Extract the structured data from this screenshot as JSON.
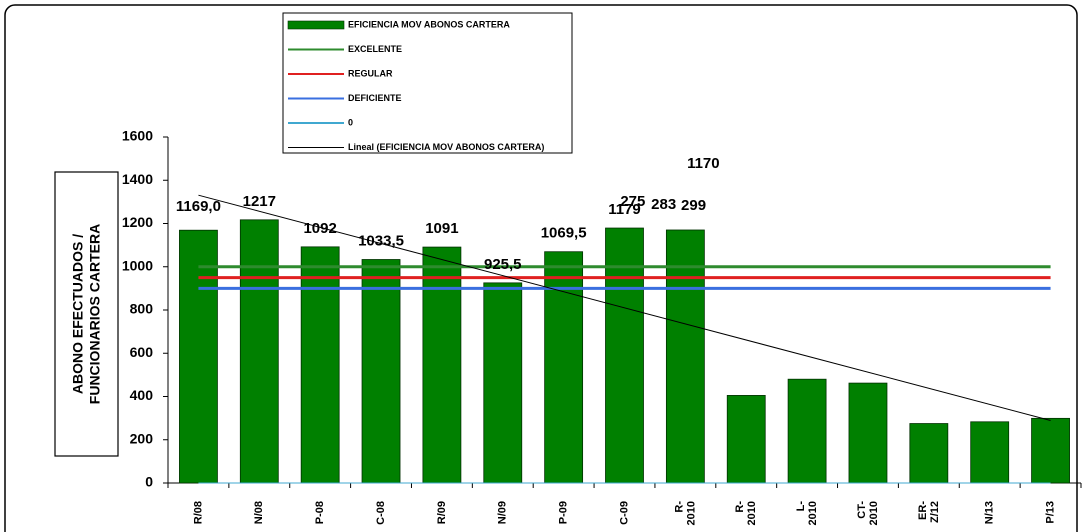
{
  "chart_data": {
    "type": "bar",
    "ylabel": [
      "ABONO EFECTUADOS /",
      "FUNCIONARIOS CARTERA"
    ],
    "categories": [
      "R/08",
      "N/08",
      "P-08",
      "C-08",
      "R/09",
      "N/09",
      "P-09",
      "C-09",
      "R- 2010",
      "R- 2010",
      "L- 2010",
      "CT- 2010",
      "ER- Z/12",
      "N/13",
      "P/13"
    ],
    "series": [
      {
        "name": "EFICIENCIA MOV ABONOS CARTERA",
        "color": "#008000",
        "values": [
          1169,
          1217,
          1092,
          1033.5,
          1091,
          925.5,
          1069.5,
          1179,
          1170,
          405,
          480,
          462,
          275,
          283,
          299
        ],
        "value_labels": [
          "1169,0",
          "1217",
          "1092",
          "1033,5",
          "1091",
          "925,5",
          "1069,5",
          "1179",
          "1170",
          null,
          null,
          null,
          "275",
          "283",
          "299"
        ]
      }
    ],
    "reference_lines": [
      {
        "name": "EXCELENTE",
        "color": "#2e8b2e",
        "value": 1000
      },
      {
        "name": "REGULAR",
        "color": "#e02020",
        "value": 950
      },
      {
        "name": "DEFICIENTE",
        "color": "#3a6fe0",
        "value": 900
      },
      {
        "name": "0",
        "color": "#40a8d0",
        "value": 0
      }
    ],
    "trendline": {
      "name": "Lineal (EFICIENCIA MOV ABONOS CARTERA)",
      "color": "#000000"
    },
    "ylim": [
      0,
      1600
    ],
    "yticks": [
      0,
      200,
      400,
      600,
      800,
      1000,
      1200,
      1400,
      1600
    ]
  }
}
